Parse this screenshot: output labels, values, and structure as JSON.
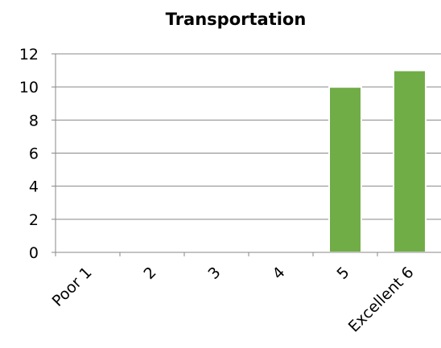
{
  "chart_data": {
    "type": "bar",
    "title": "Transportation",
    "categories": [
      "Poor 1",
      "2",
      "3",
      "4",
      "5",
      "Excellent 6"
    ],
    "values": [
      0,
      0,
      0,
      0,
      10,
      11
    ],
    "ylim": [
      0,
      12
    ],
    "yticks": [
      "0",
      "2",
      "4",
      "6",
      "8",
      "10",
      "12"
    ],
    "grid": true,
    "legend": "none",
    "bar_color": "#70AD47",
    "bar_edge_color": "#ffffff"
  }
}
